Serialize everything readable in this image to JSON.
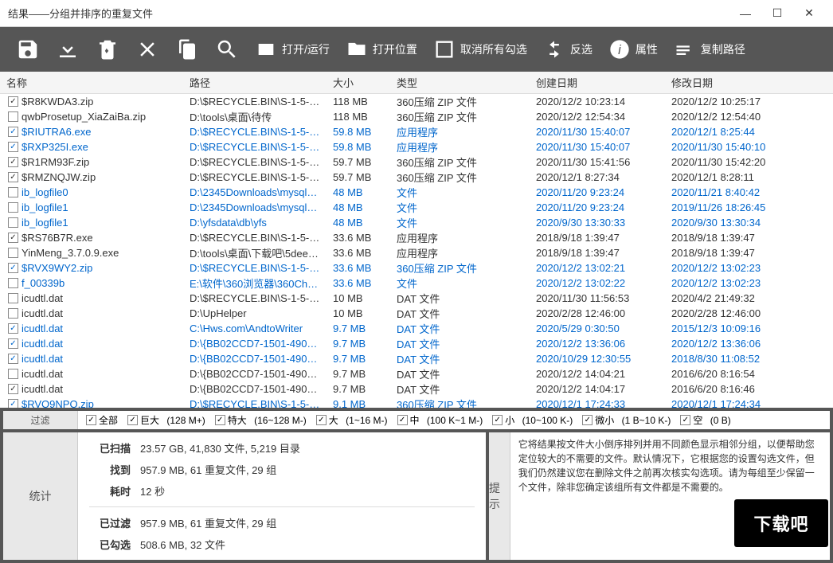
{
  "window": {
    "title": "结果——分组并排序的重复文件"
  },
  "toolbar": {
    "open_run": "打开/运行",
    "open_location": "打开位置",
    "uncheck_all": "取消所有勾选",
    "invert": "反选",
    "properties": "属性",
    "copy_path": "复制路径"
  },
  "columns": {
    "name": "名称",
    "path": "路径",
    "size": "大小",
    "type": "类型",
    "created": "创建日期",
    "modified": "修改日期"
  },
  "rows": [
    {
      "chk": true,
      "blue": false,
      "name": "$R8KWDA3.zip",
      "path": "D:\\$RECYCLE.BIN\\S-1-5-21-21...",
      "size": "118 MB",
      "type": "360压缩 ZIP 文件",
      "created": "2020/12/2 10:23:14",
      "modified": "2020/12/2 10:25:17"
    },
    {
      "chk": false,
      "blue": false,
      "name": "qwbProsetup_XiaZaiBa.zip",
      "path": "D:\\tools\\桌面\\待传",
      "size": "118 MB",
      "type": "360压缩 ZIP 文件",
      "created": "2020/12/2 12:54:34",
      "modified": "2020/12/2 12:54:40"
    },
    {
      "chk": true,
      "blue": true,
      "name": "$RIUTRA6.exe",
      "path": "D:\\$RECYCLE.BIN\\S-1-5-21-21...",
      "size": "59.8 MB",
      "type": "应用程序",
      "created": "2020/11/30 15:40:07",
      "modified": "2020/12/1 8:25:44"
    },
    {
      "chk": true,
      "blue": true,
      "name": "$RXP325I.exe",
      "path": "D:\\$RECYCLE.BIN\\S-1-5-21-21...",
      "size": "59.8 MB",
      "type": "应用程序",
      "created": "2020/11/30 15:40:07",
      "modified": "2020/11/30 15:40:10"
    },
    {
      "chk": true,
      "blue": false,
      "name": "$R1RM93F.zip",
      "path": "D:\\$RECYCLE.BIN\\S-1-5-21-21...",
      "size": "59.7 MB",
      "type": "360压缩 ZIP 文件",
      "created": "2020/11/30 15:41:56",
      "modified": "2020/11/30 15:42:20"
    },
    {
      "chk": true,
      "blue": false,
      "name": "$RMZNQJW.zip",
      "path": "D:\\$RECYCLE.BIN\\S-1-5-21-21...",
      "size": "59.7 MB",
      "type": "360压缩 ZIP 文件",
      "created": "2020/12/1 8:27:34",
      "modified": "2020/12/1 8:28:11"
    },
    {
      "chk": false,
      "blue": true,
      "name": "ib_logfile0",
      "path": "D:\\2345Downloads\\mysql\\data",
      "size": "48 MB",
      "type": "文件",
      "created": "2020/11/20 9:23:24",
      "modified": "2020/11/21 8:40:42"
    },
    {
      "chk": false,
      "blue": true,
      "name": "ib_logfile1",
      "path": "D:\\2345Downloads\\mysql\\data",
      "size": "48 MB",
      "type": "文件",
      "created": "2020/11/20 9:23:24",
      "modified": "2019/11/26 18:26:45"
    },
    {
      "chk": false,
      "blue": true,
      "name": "ib_logfile1",
      "path": "D:\\yfsdata\\db\\yfs",
      "size": "48 MB",
      "type": "文件",
      "created": "2020/9/30 13:30:33",
      "modified": "2020/9/30 13:30:34"
    },
    {
      "chk": true,
      "blue": false,
      "name": "$RS76B7R.exe",
      "path": "D:\\$RECYCLE.BIN\\S-1-5-21-21...",
      "size": "33.6 MB",
      "type": "应用程序",
      "created": "2018/9/18 1:39:47",
      "modified": "2018/9/18 1:39:47"
    },
    {
      "chk": false,
      "blue": false,
      "name": "YinMeng_3.7.0.9.exe",
      "path": "D:\\tools\\桌面\\下载吧\\5dee55...",
      "size": "33.6 MB",
      "type": "应用程序",
      "created": "2018/9/18 1:39:47",
      "modified": "2018/9/18 1:39:47"
    },
    {
      "chk": true,
      "blue": true,
      "name": "$RVX9WY2.zip",
      "path": "D:\\$RECYCLE.BIN\\S-1-5-21-21...",
      "size": "33.6 MB",
      "type": "360压缩 ZIP 文件",
      "created": "2020/12/2 13:02:21",
      "modified": "2020/12/2 13:02:23"
    },
    {
      "chk": false,
      "blue": true,
      "name": "f_00339b",
      "path": "E:\\软件\\360浏览器\\360Chro...",
      "size": "33.6 MB",
      "type": "文件",
      "created": "2020/12/2 13:02:22",
      "modified": "2020/12/2 13:02:23"
    },
    {
      "chk": false,
      "blue": false,
      "name": "icudtl.dat",
      "path": "D:\\$RECYCLE.BIN\\S-1-5-21-21...",
      "size": "10 MB",
      "type": "DAT 文件",
      "created": "2020/11/30 11:56:53",
      "modified": "2020/4/2 21:49:32"
    },
    {
      "chk": false,
      "blue": false,
      "name": "icudtl.dat",
      "path": "D:\\UpHelper",
      "size": "10 MB",
      "type": "DAT 文件",
      "created": "2020/2/28 12:46:00",
      "modified": "2020/2/28 12:46:00"
    },
    {
      "chk": true,
      "blue": true,
      "name": "icudtl.dat",
      "path": "C:\\Hws.com\\AndtoWriter",
      "size": "9.7 MB",
      "type": "DAT 文件",
      "created": "2020/5/29 0:30:50",
      "modified": "2015/12/3 10:09:16"
    },
    {
      "chk": true,
      "blue": true,
      "name": "icudtl.dat",
      "path": "D:\\{BB02CCD7-1501-4901-B5E...",
      "size": "9.7 MB",
      "type": "DAT 文件",
      "created": "2020/12/2 13:36:06",
      "modified": "2020/12/2 13:36:06"
    },
    {
      "chk": true,
      "blue": true,
      "name": "icudtl.dat",
      "path": "D:\\{BB02CCD7-1501-4901-B5E...",
      "size": "9.7 MB",
      "type": "DAT 文件",
      "created": "2020/10/29 12:30:55",
      "modified": "2018/8/30 11:08:52"
    },
    {
      "chk": false,
      "blue": false,
      "name": "icudtl.dat",
      "path": "D:\\{BB02CCD7-1501-4901-B5E...",
      "size": "9.7 MB",
      "type": "DAT 文件",
      "created": "2020/12/2 14:04:21",
      "modified": "2016/6/20 8:16:54"
    },
    {
      "chk": true,
      "blue": false,
      "name": "icudtl.dat",
      "path": "D:\\{BB02CCD7-1501-4901-B5E...",
      "size": "9.7 MB",
      "type": "DAT 文件",
      "created": "2020/12/2 14:04:17",
      "modified": "2016/6/20 8:16:46"
    },
    {
      "chk": true,
      "blue": true,
      "name": "$RVO9NPO.zip",
      "path": "D:\\$RECYCLE.BIN\\S-1-5-21-21...",
      "size": "9.1 MB",
      "type": "360压缩 ZIP 文件",
      "created": "2020/12/1 17:24:33",
      "modified": "2020/12/1 17:24:34"
    }
  ],
  "filter": {
    "label": "过滤",
    "all": "全部",
    "huge": "巨大",
    "huge_range": "(128 M+)",
    "xlarge": "特大",
    "xlarge_range": "(16~128 M-)",
    "large": "大",
    "large_range": "(1~16 M-)",
    "medium": "中",
    "medium_range": "(100 K~1 M-)",
    "small": "小",
    "small_range": "(10~100 K-)",
    "tiny": "微小",
    "tiny_range": "(1 B~10 K-)",
    "empty": "空",
    "empty_range": "(0 B)"
  },
  "stats": {
    "label": "统计",
    "scanned_key": "已扫描",
    "scanned_val": "23.57 GB, 41,830 文件, 5,219 目录",
    "found_key": "找到",
    "found_val": "957.9 MB, 61 重复文件, 29 组",
    "time_key": "耗时",
    "time_val": "12 秒",
    "filtered_key": "已过滤",
    "filtered_val": "957.9 MB, 61 重复文件, 29 组",
    "checked_key": "已勾选",
    "checked_val": "508.6 MB, 32 文件"
  },
  "tips": {
    "label": "提示",
    "text": "它将结果按文件大小倒序排列并用不同颜色显示相邻分组，以便帮助您定位较大的不需要的文件。默认情况下，它根据您的设置勾选文件，但我们仍然建议您在删除文件之前再次核实勾选项。请为每组至少保留一个文件，除非您确定该组所有文件都是不需要的。"
  },
  "watermark": "下载吧"
}
